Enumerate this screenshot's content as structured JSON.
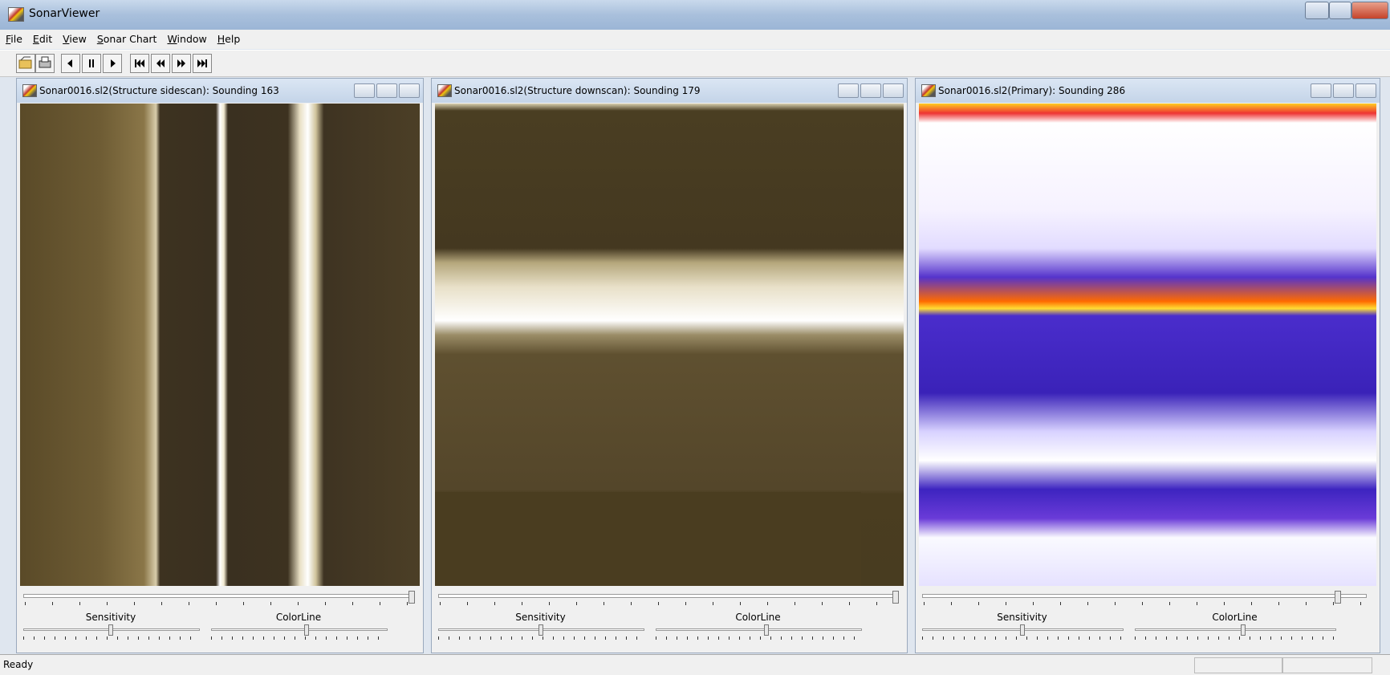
{
  "window": {
    "title": "SonarViewer"
  },
  "menu": [
    "File",
    "Edit",
    "View",
    "Sonar Chart",
    "Window",
    "Help"
  ],
  "panels": [
    {
      "title": "Sonar0016.sl2(Structure sidescan): Sounding 163",
      "sliders": [
        "Sensitivity",
        "ColorLine"
      ]
    },
    {
      "title": "Sonar0016.sl2(Structure downscan): Sounding 179",
      "sliders": [
        "Sensitivity",
        "ColorLine"
      ]
    },
    {
      "title": "Sonar0016.sl2(Primary): Sounding 286",
      "sliders": [
        "Sensitivity",
        "ColorLine"
      ]
    }
  ],
  "status": "Ready"
}
